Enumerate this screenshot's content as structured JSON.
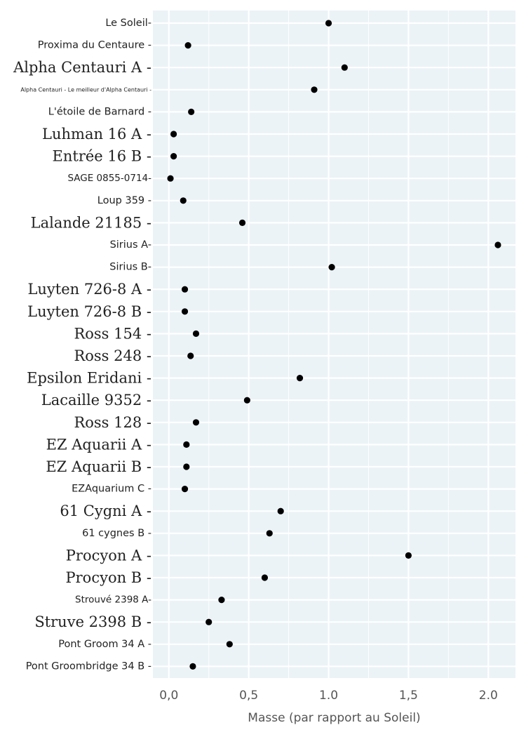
{
  "chart_data": {
    "type": "scatter",
    "title": "",
    "xlabel": "Masse (par rapport au Soleil)",
    "ylabel": "",
    "xlim": [
      -0.1,
      2.17
    ],
    "grid": true,
    "x_ticks": [
      {
        "value": 0.0,
        "label": "0,0"
      },
      {
        "value": 0.5,
        "label": "0,5"
      },
      {
        "value": 1.0,
        "label": "1.0"
      },
      {
        "value": 1.5,
        "label": "1,5"
      },
      {
        "value": 2.0,
        "label": "2.0"
      }
    ],
    "points": [
      {
        "name": "Le Soleil",
        "mass": 1.0
      },
      {
        "name": "Proxima du Centaure",
        "mass": 0.12
      },
      {
        "name": "Alpha Centauri A",
        "mass": 1.1
      },
      {
        "name": "Alpha Centauri - Le meilleur d'Alpha Centauri",
        "mass": 0.91
      },
      {
        "name": "L'étoile de Barnard",
        "mass": 0.14
      },
      {
        "name": "Luhman 16 A",
        "mass": 0.03
      },
      {
        "name": "Entrée 16 B",
        "mass": 0.03
      },
      {
        "name": "SAGE 0855-0714",
        "mass": 0.01
      },
      {
        "name": "Loup 359",
        "mass": 0.09
      },
      {
        "name": "Lalande 21185",
        "mass": 0.46
      },
      {
        "name": "Sirius A",
        "mass": 2.06
      },
      {
        "name": "Sirius B",
        "mass": 1.02
      },
      {
        "name": "Luyten 726-8 A",
        "mass": 0.1
      },
      {
        "name": "Luyten 726-8 B",
        "mass": 0.1
      },
      {
        "name": "Ross 154",
        "mass": 0.17
      },
      {
        "name": "Ross 248",
        "mass": 0.136
      },
      {
        "name": "Epsilon Eridani",
        "mass": 0.82
      },
      {
        "name": "Lacaille 9352",
        "mass": 0.49
      },
      {
        "name": "Ross 128",
        "mass": 0.17
      },
      {
        "name": "EZ Aquarii A",
        "mass": 0.11
      },
      {
        "name": "EZ Aquarii B",
        "mass": 0.11
      },
      {
        "name": "EZAquarium C",
        "mass": 0.1
      },
      {
        "name": "61 Cygni A",
        "mass": 0.7
      },
      {
        "name": "61 cygnes B",
        "mass": 0.63
      },
      {
        "name": "Procyon A",
        "mass": 1.5
      },
      {
        "name": "Procyon B",
        "mass": 0.6
      },
      {
        "name": "Strouvé 2398 A",
        "mass": 0.33
      },
      {
        "name": "Struve 2398 B",
        "mass": 0.25
      },
      {
        "name": "Pont Groom 34 A",
        "mass": 0.38
      },
      {
        "name": "Pont Groombridge 34 B",
        "mass": 0.15
      }
    ]
  }
}
